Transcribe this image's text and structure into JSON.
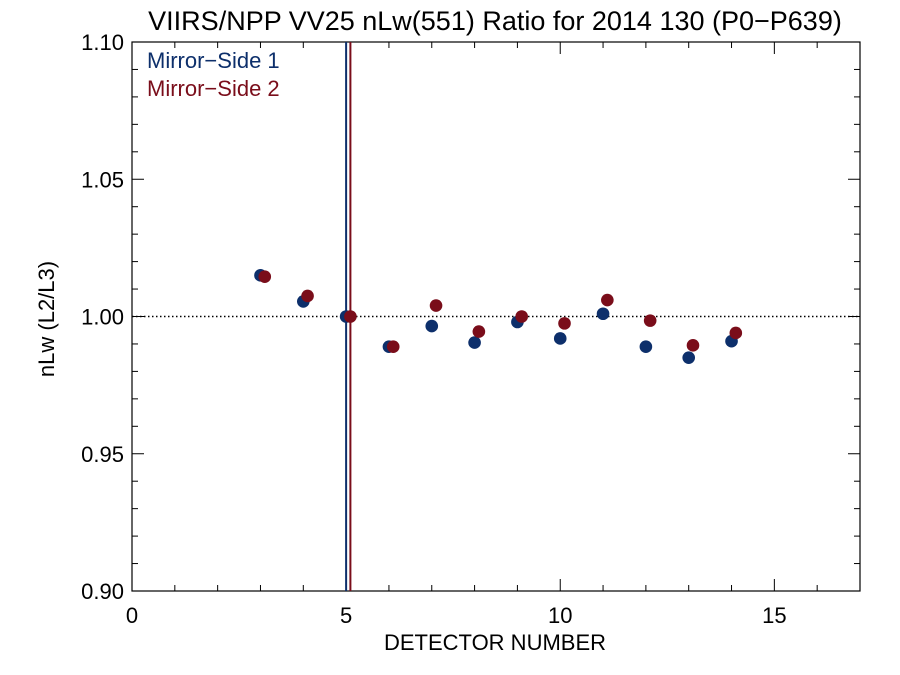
{
  "chart_data": {
    "type": "scatter",
    "title": "VIIRS/NPP VV25 nLw(551) Ratio for 2014 130 (P0−P639)",
    "xlabel": "DETECTOR NUMBER",
    "ylabel": "nLw (L2/L3)",
    "xlim": [
      0,
      17
    ],
    "ylim": [
      0.9,
      1.1
    ],
    "x_ticks": [
      0,
      5,
      10,
      15
    ],
    "y_ticks": [
      0.9,
      0.95,
      1.0,
      1.05,
      1.1
    ],
    "x_tick_labels": [
      "0",
      "5",
      "10",
      "15"
    ],
    "y_tick_labels": [
      "0.90",
      "0.95",
      "1.00",
      "1.05",
      "1.10"
    ],
    "reference_line": 1.0,
    "legend_position": "top-left",
    "series": [
      {
        "name": "Mirror−Side 1",
        "color": "#0d2f6b",
        "x": [
          3,
          4,
          5,
          6,
          7,
          8,
          9,
          10,
          11,
          12,
          13,
          14
        ],
        "y": [
          1.015,
          1.0055,
          1.0,
          0.989,
          0.9965,
          0.9905,
          0.998,
          0.992,
          1.001,
          0.989,
          0.985,
          0.991
        ]
      },
      {
        "name": "Mirror−Side 2",
        "color": "#7a0d1a",
        "x": [
          3.1,
          4.1,
          5.1,
          6.1,
          7.1,
          8.1,
          9.1,
          10.1,
          11.1,
          12.1,
          13.1,
          14.1
        ],
        "y": [
          1.0145,
          1.0075,
          1.0,
          0.989,
          1.004,
          0.9945,
          1.0,
          0.9975,
          1.006,
          0.9985,
          0.9895,
          0.994
        ]
      }
    ],
    "vertical_lines": [
      {
        "x": 5.0,
        "color": "#0d2f6b"
      },
      {
        "x": 5.1,
        "color": "#7a0d1a"
      }
    ]
  }
}
